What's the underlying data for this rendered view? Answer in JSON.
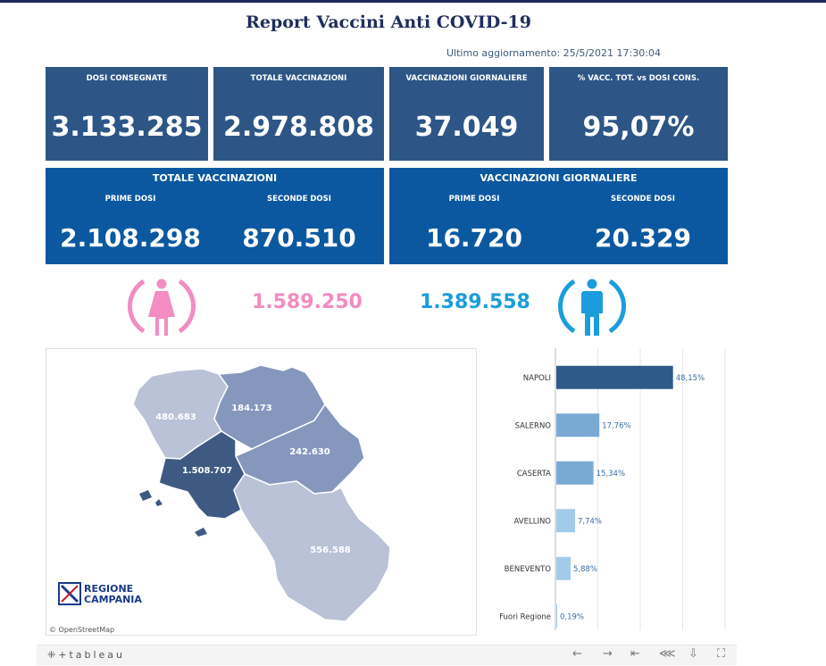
{
  "header": {
    "title": "Report Vaccini Anti COVID-19",
    "updated": "Ultimo aggiornamento: 25/5/2021  17:30:04"
  },
  "kpis": [
    {
      "label": "DOSI  CONSEGNATE",
      "value": "3.133.285"
    },
    {
      "label": "TOTALE VACCINAZIONI",
      "value": "2.978.808"
    },
    {
      "label": "VACCINAZIONI GIORNALIERE",
      "value": "37.049"
    },
    {
      "label": "% VACC. TOT. vs DOSI CONS.",
      "value": "95,07%"
    }
  ],
  "totale_vaccinazioni": {
    "title": "TOTALE VACCINAZIONI",
    "prime_label": "PRIME DOSI",
    "prime_value": "2.108.298",
    "seconde_label": "SECONDE DOSI",
    "seconde_value": "870.510"
  },
  "vaccinazioni_giornaliere": {
    "title": "VACCINAZIONI GIORNALIERE",
    "prime_label": "PRIME DOSI",
    "prime_value": "16.720",
    "seconde_label": "SECONDE DOSI",
    "seconde_value": "20.329"
  },
  "gender": {
    "female_value": "1.589.250",
    "female_color": "#f28cc2",
    "male_value": "1.389.558",
    "male_color": "#1b9ddc"
  },
  "map": {
    "regions": [
      {
        "name": "caserta",
        "value": "480.683",
        "color": "#b9c2d6"
      },
      {
        "name": "benevento",
        "value": "184.173",
        "color": "#8697bd"
      },
      {
        "name": "avellino",
        "value": "242.630",
        "color": "#8697bd"
      },
      {
        "name": "napoli",
        "value": "1.508.707",
        "color": "#3f5a82"
      },
      {
        "name": "salerno",
        "value": "556.588",
        "color": "#b9c2d6"
      }
    ],
    "logo_line1": "REGIONE",
    "logo_line2": "CAMPANIA",
    "attribution": "© OpenStreetMap"
  },
  "chart_data": {
    "type": "bar",
    "orientation": "horizontal",
    "categories": [
      "NAPOLI",
      "SALERNO",
      "CASERTA",
      "AVELLINO",
      "BENEVENTO",
      "Fuori Regione"
    ],
    "values": [
      48.15,
      17.76,
      15.34,
      7.74,
      5.88,
      0.19
    ],
    "labels": [
      "48,15%",
      "17,76%",
      "15,34%",
      "7,74%",
      "5,88%",
      "0,19%"
    ],
    "colors": [
      "#2e5a8a",
      "#7aaad4",
      "#7aaad4",
      "#a2cbe9",
      "#a2cbe9",
      "#a2cbe9"
    ],
    "xlim": [
      0,
      70
    ],
    "grid": true
  },
  "footer": {
    "brand": "tableau",
    "icons": [
      "back-icon",
      "forward-icon",
      "first-icon",
      "share-icon",
      "download-icon",
      "fullscreen-icon"
    ]
  }
}
